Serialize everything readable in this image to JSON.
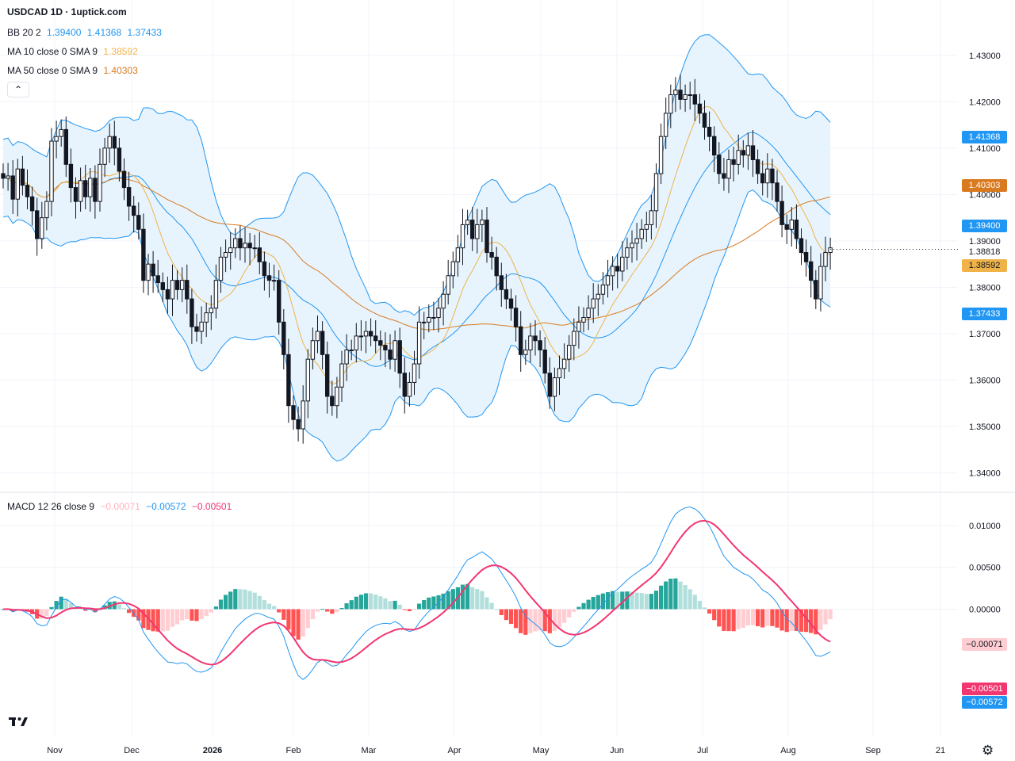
{
  "header": {
    "title": "USDCAD 1D · 1uptick.com",
    "bb": {
      "label": "BB 20 2",
      "values": [
        "1.39400",
        "1.41368",
        "1.37433"
      ]
    },
    "ma10": {
      "label": "MA 10 close 0 SMA 9",
      "value": "1.38592"
    },
    "ma50": {
      "label": "MA 50 close 0 SMA 9",
      "value": "1.40303"
    },
    "collapse_icon": "chevron-up-icon"
  },
  "macd_header": {
    "label": "MACD 12 26 close 9",
    "values": [
      "−0.00071",
      "−0.00572",
      "−0.00501"
    ]
  },
  "colors": {
    "bb_fill": "#e3f2fd",
    "bb_line": "#2196f3",
    "ma10": "#f0b34a",
    "ma50": "#d97a1e",
    "macd_line": "#2196f3",
    "signal_line": "#f23670",
    "hist_up_strong": "#26a69a",
    "hist_up_weak": "#b2dfdb",
    "hist_down_strong": "#ff5252",
    "hist_down_weak": "#ffcdd2",
    "candle": "#131722"
  },
  "chart_data": [
    {
      "type": "candlestick",
      "title": "USDCAD 1D",
      "ylim": [
        1.336,
        1.4385
      ],
      "y_ticks": [
        "1.34000",
        "1.35000",
        "1.36000",
        "1.37000",
        "1.38000",
        "1.39000",
        "1.40000",
        "1.41000",
        "1.42000",
        "1.43000"
      ],
      "x_ticks": [
        "Nov",
        "Dec",
        "2026",
        "Feb",
        "Mar",
        "Apr",
        "May",
        "Jun",
        "Jul",
        "Aug",
        "Sep",
        "21"
      ],
      "last_price": "1.38818",
      "price_tags": [
        {
          "label": "1.41368",
          "series": "BB upper"
        },
        {
          "label": "1.40303",
          "series": "MA 50"
        },
        {
          "label": "1.39400",
          "series": "BB basis"
        },
        {
          "label": "1.38818",
          "series": "last"
        },
        {
          "label": "1.38592",
          "series": "MA 10"
        },
        {
          "label": "1.37433",
          "series": "BB lower"
        }
      ],
      "closes": [
        1.4035,
        1.404,
        1.399,
        1.4055,
        1.402,
        1.3995,
        1.3965,
        1.3905,
        1.395,
        1.3985,
        1.4115,
        1.4125,
        1.414,
        1.4065,
        1.4015,
        1.3985,
        1.403,
        1.3995,
        1.4035,
        1.3985,
        1.4065,
        1.41,
        1.4125,
        1.41,
        1.405,
        1.4015,
        1.3975,
        1.3955,
        1.3925,
        1.3815,
        1.385,
        1.3825,
        1.381,
        1.3795,
        1.3775,
        1.3815,
        1.3795,
        1.3815,
        1.3775,
        1.3715,
        1.3705,
        1.3725,
        1.3745,
        1.3755,
        1.3815,
        1.3865,
        1.3875,
        1.3885,
        1.3905,
        1.3885,
        1.3895,
        1.3885,
        1.3885,
        1.3855,
        1.3825,
        1.3815,
        1.3815,
        1.3725,
        1.3655,
        1.3545,
        1.3515,
        1.3495,
        1.3555,
        1.3645,
        1.3685,
        1.3705,
        1.3655,
        1.3565,
        1.3545,
        1.3585,
        1.3635,
        1.3665,
        1.3665,
        1.3695,
        1.3695,
        1.3705,
        1.3695,
        1.3685,
        1.3675,
        1.3665,
        1.3645,
        1.3685,
        1.3615,
        1.3565,
        1.3595,
        1.3635,
        1.3725,
        1.3725,
        1.3735,
        1.3735,
        1.3755,
        1.3785,
        1.3825,
        1.3855,
        1.3885,
        1.3935,
        1.3945,
        1.3905,
        1.3935,
        1.3945,
        1.3875,
        1.3865,
        1.3825,
        1.3795,
        1.3775,
        1.3755,
        1.3715,
        1.3655,
        1.3665,
        1.3695,
        1.3685,
        1.3665,
        1.3615,
        1.3565,
        1.3605,
        1.3625,
        1.3645,
        1.3675,
        1.3705,
        1.3725,
        1.3735,
        1.3755,
        1.3775,
        1.3785,
        1.3805,
        1.3825,
        1.3845,
        1.3835,
        1.3865,
        1.3885,
        1.3895,
        1.3905,
        1.3925,
        1.3935,
        1.3965,
        1.4045,
        1.4125,
        1.4175,
        1.4215,
        1.4225,
        1.4205,
        1.4215,
        1.4215,
        1.4195,
        1.4175,
        1.4145,
        1.4125,
        1.4085,
        1.4045,
        1.4035,
        1.4075,
        1.4065,
        1.4095,
        1.4085,
        1.4105,
        1.4075,
        1.4045,
        1.4025,
        1.4055,
        1.4025,
        1.3985,
        1.3935,
        1.3925,
        1.3945,
        1.3905,
        1.3875,
        1.3855,
        1.3815,
        1.3775,
        1.3845,
        1.3875,
        1.3885
      ],
      "bb_upper_note": "Bollinger Band upper/lower/basis, MA10 and MA50 drawn as overlays",
      "ma10_last": "1.38592",
      "ma50_last": "1.40303"
    },
    {
      "type": "bar",
      "title": "MACD 12 26 close 9",
      "ylim": [
        -0.0151,
        0.0133
      ],
      "y_ticks": [
        "0.01000",
        "0.00500",
        "0.00000"
      ],
      "value_tags": [
        {
          "label": "−0.00071",
          "series": "histogram"
        },
        {
          "label": "−0.00501",
          "series": "signal"
        },
        {
          "label": "−0.00572",
          "series": "MACD"
        }
      ]
    }
  ]
}
